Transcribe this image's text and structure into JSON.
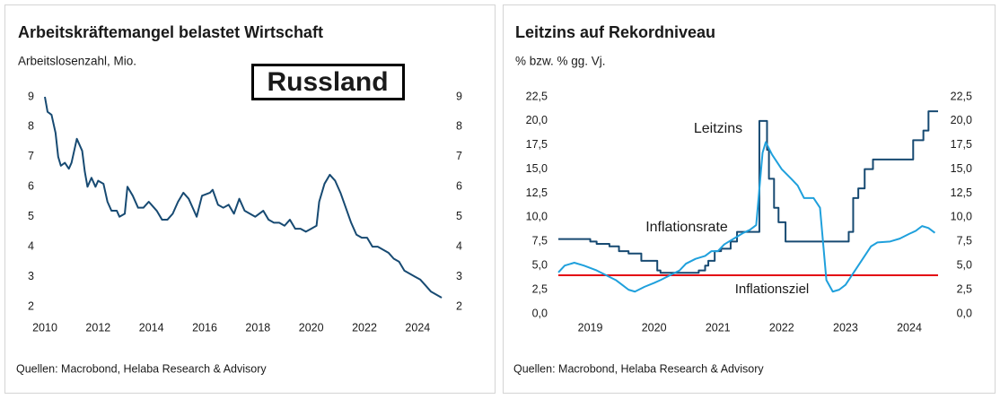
{
  "chart_data": [
    {
      "type": "line",
      "title": "Arbeitskräftemangel belastet Wirtschaft",
      "subtitle": "Arbeitslosenzahl, Mio.",
      "annotation": "Russland",
      "source": "Quellen: Macrobond, Helaba Research & Advisory",
      "color": "#174a72",
      "x": [
        2010.0,
        2010.1,
        2010.25,
        2010.4,
        2010.5,
        2010.6,
        2010.75,
        2010.9,
        2011.0,
        2011.2,
        2011.4,
        2011.5,
        2011.6,
        2011.75,
        2011.9,
        2012.0,
        2012.2,
        2012.35,
        2012.5,
        2012.7,
        2012.8,
        2013.0,
        2013.1,
        2013.3,
        2013.5,
        2013.7,
        2013.9,
        2014.0,
        2014.2,
        2014.4,
        2014.6,
        2014.8,
        2015.0,
        2015.2,
        2015.4,
        2015.6,
        2015.7,
        2015.9,
        2016.2,
        2016.3,
        2016.5,
        2016.7,
        2016.9,
        2017.1,
        2017.3,
        2017.5,
        2017.7,
        2017.9,
        2018.2,
        2018.4,
        2018.6,
        2018.8,
        2019.0,
        2019.2,
        2019.4,
        2019.6,
        2019.8,
        2020.0,
        2020.2,
        2020.3,
        2020.5,
        2020.7,
        2020.9,
        2021.1,
        2021.3,
        2021.5,
        2021.7,
        2021.9,
        2022.1,
        2022.3,
        2022.5,
        2022.7,
        2022.9,
        2023.1,
        2023.3,
        2023.5,
        2023.7,
        2023.9,
        2024.1,
        2024.3,
        2024.5,
        2024.7,
        2024.9
      ],
      "values": [
        9.0,
        8.5,
        8.4,
        7.8,
        7.0,
        6.7,
        6.8,
        6.6,
        6.8,
        7.6,
        7.2,
        6.5,
        6.0,
        6.3,
        6.0,
        6.2,
        6.1,
        5.5,
        5.2,
        5.2,
        5.0,
        5.1,
        6.0,
        5.7,
        5.3,
        5.3,
        5.5,
        5.4,
        5.2,
        4.9,
        4.9,
        5.1,
        5.5,
        5.8,
        5.6,
        5.2,
        5.0,
        5.7,
        5.8,
        5.9,
        5.4,
        5.3,
        5.4,
        5.1,
        5.6,
        5.2,
        5.1,
        5.0,
        5.2,
        4.9,
        4.8,
        4.8,
        4.7,
        4.9,
        4.6,
        4.6,
        4.5,
        4.6,
        4.7,
        5.5,
        6.1,
        6.4,
        6.2,
        5.8,
        5.3,
        4.8,
        4.4,
        4.3,
        4.3,
        4.0,
        4.0,
        3.9,
        3.8,
        3.6,
        3.5,
        3.2,
        3.1,
        3.0,
        2.9,
        2.7,
        2.5,
        2.4,
        2.3
      ],
      "xlim": [
        2010,
        2025
      ],
      "xticks": [
        2010,
        2012,
        2014,
        2016,
        2018,
        2020,
        2022,
        2024
      ],
      "ylim": [
        2,
        9
      ],
      "yticks": [
        2,
        3,
        4,
        5,
        6,
        7,
        8,
        9
      ]
    },
    {
      "type": "line",
      "title": "Leitzins auf Rekordniveau",
      "subtitle": "% bzw. % gg. Vj.",
      "source": "Quellen: Macrobond, Helaba Research & Advisory",
      "series": [
        {
          "name": "Leitzins",
          "color": "#174a72",
          "drawstyle": "steps-post",
          "x": [
            2019.0,
            2019.5,
            2019.6,
            2019.8,
            2019.95,
            2020.1,
            2020.3,
            2020.55,
            2020.6,
            2021.2,
            2021.3,
            2021.35,
            2021.45,
            2021.55,
            2021.7,
            2021.8,
            2022.15,
            2022.27,
            2022.3,
            2022.38,
            2022.45,
            2022.56,
            2023.55,
            2023.62,
            2023.7,
            2023.8,
            2023.93,
            2024.56,
            2024.72,
            2024.8,
            2024.95
          ],
          "values": [
            7.75,
            7.5,
            7.25,
            7.0,
            6.5,
            6.25,
            5.5,
            4.5,
            4.25,
            4.5,
            5.0,
            5.5,
            6.5,
            6.75,
            7.5,
            8.5,
            20.0,
            17.0,
            14.0,
            11.0,
            9.5,
            7.5,
            8.5,
            12.0,
            13.0,
            15.0,
            16.0,
            18.0,
            19.0,
            21.0,
            21.0
          ]
        },
        {
          "name": "Inflationsrate",
          "color": "#1fa0dc",
          "x": [
            2019.0,
            2019.1,
            2019.25,
            2019.4,
            2019.6,
            2019.75,
            2019.9,
            2020.0,
            2020.1,
            2020.2,
            2020.35,
            2020.5,
            2020.6,
            2020.75,
            2020.9,
            2021.0,
            2021.15,
            2021.3,
            2021.4,
            2021.5,
            2021.6,
            2021.75,
            2021.9,
            2022.0,
            2022.1,
            2022.2,
            2022.25,
            2022.35,
            2022.5,
            2022.65,
            2022.75,
            2022.85,
            2023.0,
            2023.1,
            2023.2,
            2023.3,
            2023.4,
            2023.5,
            2023.6,
            2023.75,
            2023.9,
            2024.0,
            2024.2,
            2024.35,
            2024.5,
            2024.6,
            2024.7,
            2024.8,
            2024.9
          ],
          "values": [
            4.3,
            5.0,
            5.3,
            5.0,
            4.5,
            4.0,
            3.5,
            3.0,
            2.5,
            2.3,
            2.8,
            3.2,
            3.5,
            4.0,
            4.5,
            5.2,
            5.7,
            6.0,
            6.5,
            6.5,
            7.2,
            7.8,
            8.4,
            8.7,
            9.2,
            16.7,
            17.8,
            16.5,
            15.0,
            14.0,
            13.3,
            12.0,
            12.0,
            11.0,
            3.5,
            2.3,
            2.5,
            3.0,
            4.0,
            5.5,
            7.0,
            7.4,
            7.5,
            7.8,
            8.3,
            8.6,
            9.1,
            8.9,
            8.4
          ]
        }
      ],
      "hlines": [
        {
          "name": "Inflationsziel",
          "value": 4,
          "color": "#e30613"
        }
      ],
      "xlim": [
        2019.0,
        2024.95
      ],
      "xticks": [
        {
          "value": 2019.5,
          "label": "2019"
        },
        {
          "value": 2020.5,
          "label": "2020"
        },
        {
          "value": 2021.5,
          "label": "2021"
        },
        {
          "value": 2022.5,
          "label": "2022"
        },
        {
          "value": 2023.5,
          "label": "2023"
        },
        {
          "value": 2024.5,
          "label": "2024"
        }
      ],
      "ylim": [
        0,
        22.5
      ],
      "yticks": [
        {
          "value": 0,
          "label": "0,0"
        },
        {
          "value": 2.5,
          "label": "2,5"
        },
        {
          "value": 5,
          "label": "5,0"
        },
        {
          "value": 7.5,
          "label": "7,5"
        },
        {
          "value": 10,
          "label": "10,0"
        },
        {
          "value": 12.5,
          "label": "12,5"
        },
        {
          "value": 15,
          "label": "15,0"
        },
        {
          "value": 17.5,
          "label": "17,5"
        },
        {
          "value": 20,
          "label": "20,0"
        },
        {
          "value": 22.5,
          "label": "22,5"
        }
      ]
    }
  ]
}
